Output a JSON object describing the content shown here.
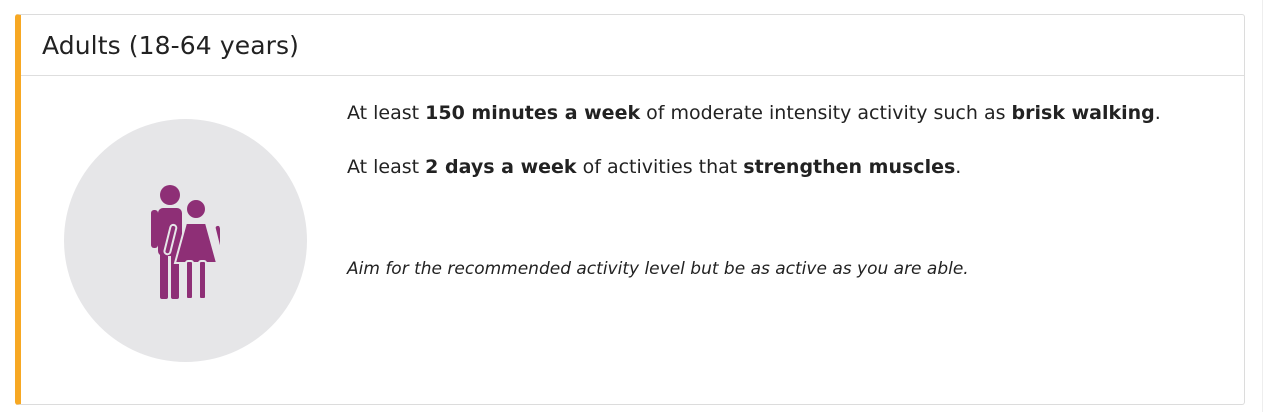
{
  "card": {
    "title": "Adults (18-64 years)",
    "accent_color": "#f7a823",
    "illustration": {
      "icon": "adult-couple-icon",
      "icon_color": "#8e2f76",
      "circle_color": "#e6e6e8"
    },
    "line1": {
      "pre": "At least ",
      "bold1": "150 minutes a week",
      "mid": " of moderate intensity activity such as ",
      "bold2": "brisk walking",
      "post": "."
    },
    "line2": {
      "pre": "At least ",
      "bold1": "2 days a week",
      "mid": " of activities that ",
      "bold2": "strengthen muscles",
      "post": "."
    },
    "note": "Aim for the recommended activity level but be as active as you are able."
  }
}
